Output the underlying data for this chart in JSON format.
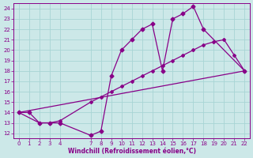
{
  "xlabel": "Windchill (Refroidissement éolien,°C)",
  "bg_color": "#cce8e8",
  "grid_color": "#a8d4d4",
  "line_color": "#880088",
  "xlim": [
    -0.5,
    22.5
  ],
  "ylim": [
    11.5,
    24.5
  ],
  "xticks": [
    0,
    1,
    2,
    3,
    4,
    7,
    8,
    9,
    10,
    11,
    12,
    13,
    14,
    15,
    16,
    17,
    18,
    19,
    20,
    21,
    22
  ],
  "yticks": [
    12,
    13,
    14,
    15,
    16,
    17,
    18,
    19,
    20,
    21,
    22,
    23,
    24
  ],
  "line1_x": [
    0,
    1,
    2,
    3,
    4,
    7,
    8,
    9,
    10,
    11,
    12,
    13,
    14,
    15,
    16,
    17,
    18,
    22
  ],
  "line1_y": [
    14.0,
    14.0,
    13.0,
    13.0,
    13.0,
    11.8,
    12.2,
    17.5,
    20.0,
    21.0,
    22.0,
    22.5,
    18.0,
    23.0,
    23.5,
    24.2,
    22.0,
    18.0
  ],
  "line2_x": [
    0,
    22
  ],
  "line2_y": [
    14.0,
    18.0
  ],
  "line3_x": [
    0,
    2,
    3,
    4,
    7,
    8,
    9,
    10,
    11,
    12,
    13,
    14,
    15,
    16,
    17,
    18,
    19,
    20,
    21,
    22
  ],
  "line3_y": [
    14.0,
    13.0,
    13.0,
    13.2,
    15.0,
    15.5,
    16.0,
    16.5,
    17.0,
    17.5,
    18.0,
    18.5,
    19.0,
    19.5,
    20.0,
    20.5,
    20.8,
    21.0,
    19.5,
    18.0
  ]
}
